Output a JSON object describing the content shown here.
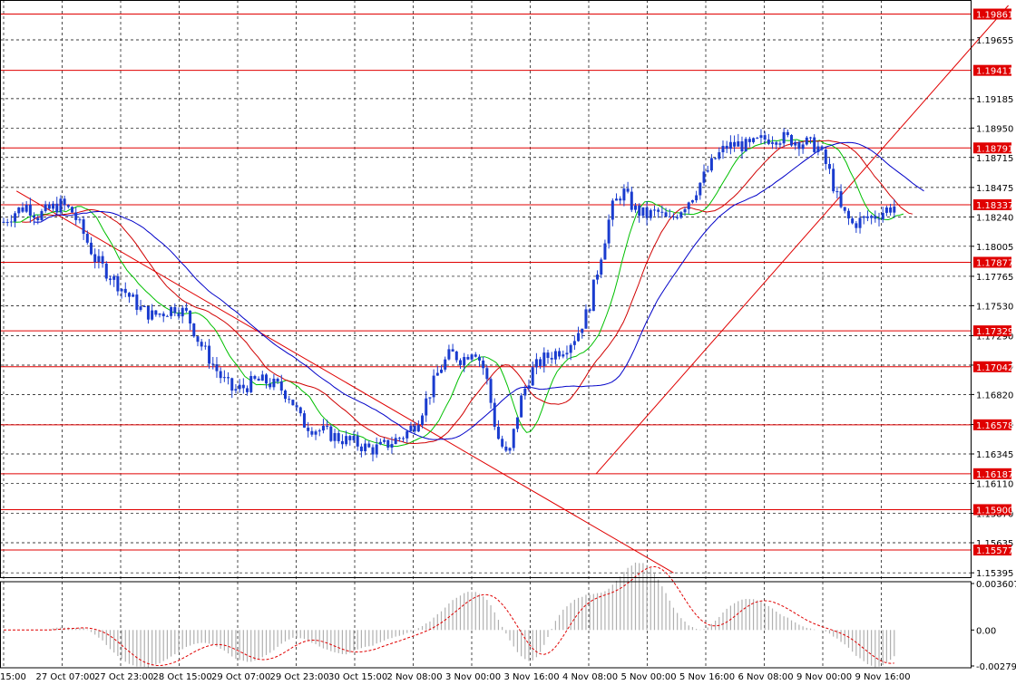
{
  "chart_data": {
    "type": "candlestick",
    "x_tick_labels": [
      "15:00",
      "27 Oct 07:00",
      "27 Oct 23:00",
      "28 Oct 15:00",
      "29 Oct 07:00",
      "29 Oct 23:00",
      "30 Oct 15:00",
      "2 Nov 08:00",
      "3 Nov 00:00",
      "3 Nov 16:00",
      "4 Nov 08:00",
      "5 Nov 00:00",
      "5 Nov 16:00",
      "6 Nov 08:00",
      "9 Nov 00:00",
      "9 Nov 16:00"
    ],
    "y_tick_labels": [
      "1.19655",
      "1.19185",
      "1.18950",
      "1.18715",
      "1.18475",
      "1.18240",
      "1.18005",
      "1.17765",
      "1.17530",
      "1.17290",
      "1.17055",
      "1.16820",
      "1.16580",
      "1.16345",
      "1.16110",
      "1.15870",
      "1.15635",
      "1.15395"
    ],
    "ylim": [
      1.1536,
      1.1993
    ],
    "levels": [
      1.19861,
      1.19411,
      1.18791,
      1.18337,
      1.17877,
      1.17329,
      1.17042,
      1.16578,
      1.16187,
      1.159,
      1.15577
    ],
    "level_labels": [
      "1.19861",
      "1.19411",
      "1.18791",
      "1.18337",
      "1.17877",
      "1.17329",
      "1.17042",
      "1.16578",
      "1.16187",
      "1.15900",
      "1.15577"
    ],
    "trendlines": [
      {
        "from": [
          1,
          1.18447
        ],
        "to": [
          52,
          1.15395
        ]
      },
      {
        "from": [
          46,
          1.16187
        ],
        "to": [
          78,
          1.1993
        ]
      }
    ],
    "price_path": [
      [
        0,
        1.182
      ],
      [
        2,
        1.1828
      ],
      [
        4,
        1.1833
      ],
      [
        6,
        1.1825
      ],
      [
        8,
        1.183
      ],
      [
        10,
        1.1834
      ],
      [
        12,
        1.1828
      ],
      [
        14,
        1.181
      ],
      [
        16,
        1.179
      ],
      [
        18,
        1.178
      ],
      [
        20,
        1.177
      ],
      [
        22,
        1.176
      ],
      [
        24,
        1.175
      ],
      [
        26,
        1.1745
      ],
      [
        28,
        1.1748
      ],
      [
        30,
        1.1752
      ],
      [
        32,
        1.1746
      ],
      [
        34,
        1.1725
      ],
      [
        36,
        1.171
      ],
      [
        38,
        1.1695
      ],
      [
        40,
        1.1685
      ],
      [
        42,
        1.1688
      ],
      [
        44,
        1.1693
      ],
      [
        46,
        1.1692
      ],
      [
        48,
        1.1688
      ],
      [
        50,
        1.168
      ],
      [
        52,
        1.166
      ],
      [
        54,
        1.1655
      ],
      [
        56,
        1.1652
      ],
      [
        58,
        1.1648
      ],
      [
        60,
        1.1645
      ],
      [
        62,
        1.1642
      ],
      [
        64,
        1.1638
      ],
      [
        66,
        1.164
      ],
      [
        68,
        1.1645
      ],
      [
        70,
        1.165
      ],
      [
        72,
        1.166
      ],
      [
        74,
        1.168
      ],
      [
        76,
        1.1702
      ],
      [
        78,
        1.1715
      ],
      [
        80,
        1.171
      ],
      [
        82,
        1.172
      ],
      [
        84,
        1.17
      ],
      [
        86,
        1.165
      ],
      [
        88,
        1.163
      ],
      [
        90,
        1.1675
      ],
      [
        92,
        1.17
      ],
      [
        94,
        1.171
      ],
      [
        96,
        1.1715
      ],
      [
        98,
        1.172
      ],
      [
        100,
        1.173
      ],
      [
        102,
        1.175
      ],
      [
        104,
        1.179
      ],
      [
        106,
        1.183
      ],
      [
        108,
        1.1845
      ],
      [
        110,
        1.183
      ],
      [
        112,
        1.1825
      ],
      [
        114,
        1.1828
      ],
      [
        116,
        1.182
      ],
      [
        118,
        1.183
      ],
      [
        120,
        1.184
      ],
      [
        122,
        1.1855
      ],
      [
        124,
        1.187
      ],
      [
        126,
        1.188
      ],
      [
        128,
        1.1882
      ],
      [
        130,
        1.188
      ],
      [
        132,
        1.1885
      ],
      [
        134,
        1.1888
      ],
      [
        136,
        1.1887
      ],
      [
        138,
        1.1885
      ],
      [
        140,
        1.1883
      ],
      [
        142,
        1.188
      ],
      [
        144,
        1.186
      ],
      [
        146,
        1.183
      ],
      [
        148,
        1.1818
      ],
      [
        150,
        1.1822
      ],
      [
        152,
        1.1825
      ],
      [
        154,
        1.183
      ],
      [
        156,
        1.1834
      ]
    ],
    "series": [
      {
        "name": "",
        "color": "#00c000"
      },
      {
        "name": "",
        "color": "#d00000"
      },
      {
        "name": "",
        "color": "#0000c8"
      }
    ],
    "oscillator": {
      "y_tick_labels": [
        "0.003607",
        "0.00",
        "-0.002792"
      ],
      "ylim": [
        -0.002792,
        0.003607
      ]
    }
  }
}
